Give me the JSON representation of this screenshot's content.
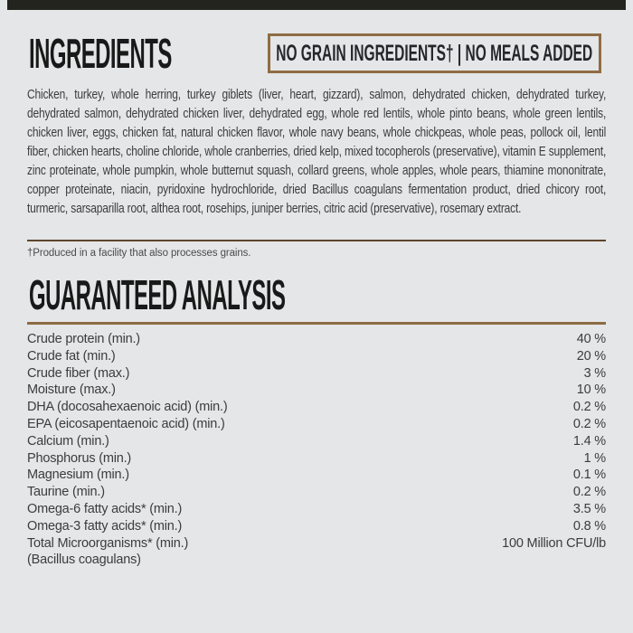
{
  "colors": {
    "background": "#e4e6e7",
    "top_strip": "#23241e",
    "accent_brown": "#8f6c44",
    "divider_dark_brown": "#5e452a",
    "heading_text": "#191919",
    "body_text": "#3c3c3c"
  },
  "ingredients": {
    "title": "INGREDIENTS",
    "badge": "NO GRAIN INGREDIENTS† | NO MEALS ADDED",
    "body": "Chicken, turkey, whole herring, turkey giblets (liver, heart, gizzard), salmon, dehydrated chicken, dehydrated turkey, dehydrated salmon, dehydrated chicken liver, dehydrated egg, whole red lentils, whole pinto beans, whole green lentils, chicken liver, eggs, chicken fat, natural chicken flavor, whole navy beans, whole chickpeas, whole peas, pollock oil, lentil fiber, chicken hearts, choline chloride, whole cranberries, dried kelp, mixed tocopherols (preservative), vitamin E supplement, zinc proteinate, whole pumpkin, whole butternut squash, collard greens, whole apples, whole pears, thiamine mononitrate, copper proteinate, niacin, pyridoxine hydrochloride, dried Bacillus coagulans fermentation product, dried chicory root, turmeric, sarsaparilla root, althea root, rosehips, juniper berries, citric acid (preservative), rosemary extract.",
    "footnote": "†Produced in a facility that also processes grains."
  },
  "analysis": {
    "title": "GUARANTEED ANALYSIS",
    "rows": [
      {
        "label": "Crude protein (min.)",
        "value": "40 %"
      },
      {
        "label": "Crude fat (min.)",
        "value": "20 %"
      },
      {
        "label": "Crude fiber (max.)",
        "value": "3 %"
      },
      {
        "label": "Moisture (max.)",
        "value": "10 %"
      },
      {
        "label": "DHA (docosahexaenoic acid) (min.)",
        "value": "0.2 %"
      },
      {
        "label": "EPA (eicosapentaenoic acid) (min.)",
        "value": "0.2 %"
      },
      {
        "label": "Calcium (min.)",
        "value": "1.4 %"
      },
      {
        "label": "Phosphorus (min.)",
        "value": "1 %"
      },
      {
        "label": "Magnesium (min.)",
        "value": "0.1 %"
      },
      {
        "label": "Taurine (min.)",
        "value": "0.2 %"
      },
      {
        "label": "Omega-6 fatty acids* (min.)",
        "value": "3.5 %"
      },
      {
        "label": "Omega-3 fatty acids* (min.)",
        "value": "0.8 %"
      },
      {
        "label": "Total Microorganisms* (min.)",
        "value": "100 Million CFU/lb"
      },
      {
        "label": "(Bacillus coagulans)",
        "value": ""
      }
    ]
  }
}
